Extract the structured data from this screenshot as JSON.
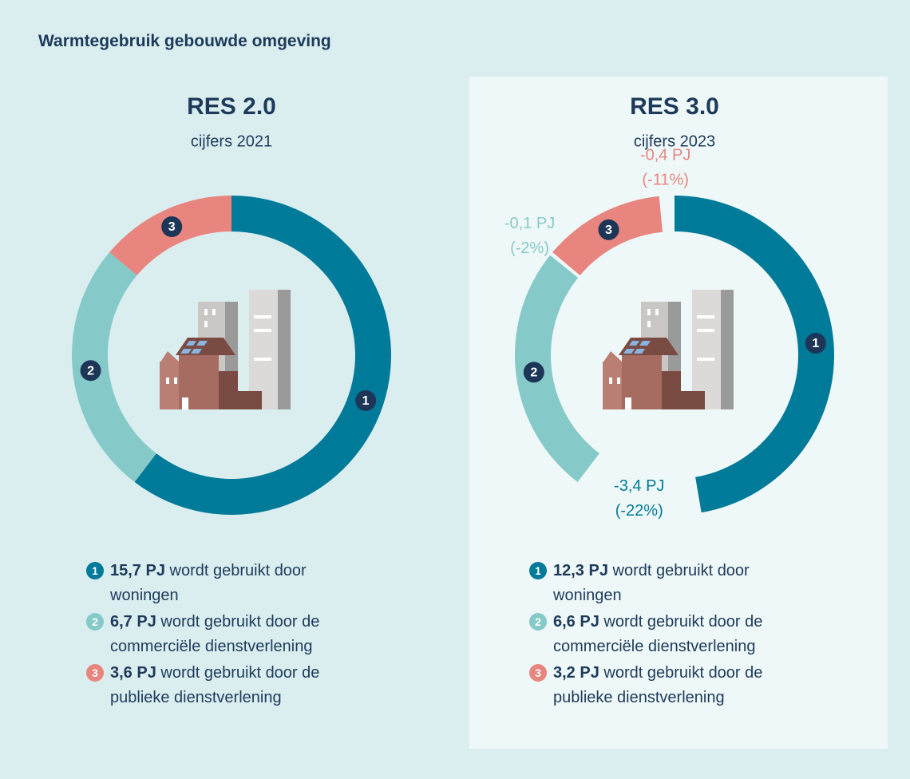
{
  "title": "Warmtegebruik gebouwde omgeving",
  "chart_data": [
    {
      "type": "donut",
      "title": "RES 2.0",
      "subtitle": "cijfers 2021",
      "categories": [
        "wordt gebruikt door woningen",
        "wordt gebruikt door de commerciële dienstverlening",
        "wordt gebruikt door de publieke dienstverlening"
      ],
      "numbers": [
        1,
        2,
        3
      ],
      "values": [
        15.7,
        6.7,
        3.6
      ],
      "value_labels": [
        "15,7 PJ",
        "6,7 PJ",
        "3,6 PJ"
      ],
      "colors": [
        "#007a99",
        "#85cac8",
        "#e8857f"
      ]
    },
    {
      "type": "donut",
      "title": "RES 3.0",
      "subtitle": "cijfers 2023",
      "categories": [
        "wordt gebruikt door woningen",
        "wordt gebruikt door de commerciële dienstverlening",
        "wordt gebruikt door de publieke dienstverlening"
      ],
      "numbers": [
        1,
        2,
        3
      ],
      "values": [
        12.3,
        6.6,
        3.2
      ],
      "value_labels": [
        "12,3 PJ",
        "6,6 PJ",
        "3,2 PJ"
      ],
      "changes": [
        -3.4,
        -0.1,
        -0.4
      ],
      "change_labels": [
        "-3,4 PJ",
        "-0,1 PJ",
        "-0,4 PJ"
      ],
      "change_percent_labels": [
        "(-22%)",
        "(-2%)",
        "(-11%)"
      ],
      "colors": [
        "#007a99",
        "#85cac8",
        "#e8857f"
      ]
    }
  ]
}
